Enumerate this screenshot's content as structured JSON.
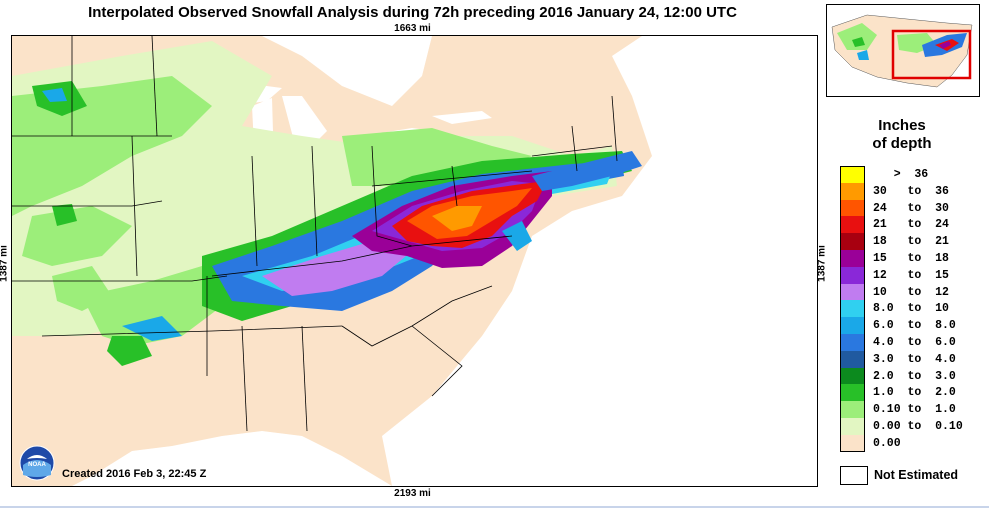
{
  "title": "Interpolated Observed Snowfall Analysis during 72h preceding 2016 January 24, 12:00 UTC",
  "distances": {
    "top": "1663 mi",
    "bottom": "2193 mi",
    "left": "1387 mi",
    "right": "1387 mi"
  },
  "created": "Created 2016 Feb 3, 22:45 Z",
  "logo_text": "NOAA",
  "legend": {
    "title_line1": "Inches",
    "title_line2": "of depth",
    "items": [
      {
        "label": "   >  36",
        "color": "#ffff00"
      },
      {
        "label": "30   to  36",
        "color": "#ff9a00"
      },
      {
        "label": "24   to  30",
        "color": "#ff5500"
      },
      {
        "label": "21   to  24",
        "color": "#e81010"
      },
      {
        "label": "18   to  21",
        "color": "#a80010"
      },
      {
        "label": "15   to  18",
        "color": "#9a0098"
      },
      {
        "label": "12   to  15",
        "color": "#8a28d8"
      },
      {
        "label": "10   to  12",
        "color": "#c07cf0"
      },
      {
        "label": "8.0  to  10",
        "color": "#30d0f0"
      },
      {
        "label": "6.0  to  8.0",
        "color": "#1aa8e8"
      },
      {
        "label": "4.0  to  6.0",
        "color": "#2a78e0"
      },
      {
        "label": "3.0  to  4.0",
        "color": "#205aa0"
      },
      {
        "label": "2.0  to  3.0",
        "color": "#0c8a1e"
      },
      {
        "label": "1.0  to  2.0",
        "color": "#28c028"
      },
      {
        "label": "0.10 to  1.0",
        "color": "#9cee7a"
      },
      {
        "label": "0.00 to  0.10",
        "color": "#e2f6c2"
      },
      {
        "label": "0.00",
        "color": "#fbe3c9"
      }
    ],
    "not_estimated": "Not Estimated"
  }
}
